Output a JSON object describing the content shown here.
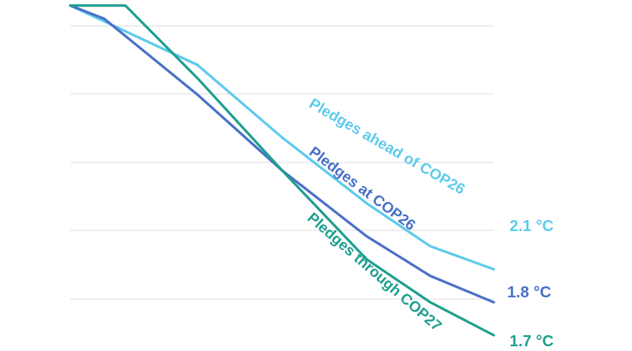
{
  "chart_data": {
    "type": "line",
    "title": "",
    "xlabel": "",
    "ylabel": "",
    "grid": true,
    "series": [
      {
        "name": "Pledges ahead of COP26",
        "end_label": "2.1 °C",
        "color": "#5ccbec",
        "points": [
          [
            0,
            0
          ],
          [
            0.1,
            0.06
          ],
          [
            0.3,
            0.18
          ],
          [
            0.5,
            0.4
          ],
          [
            0.7,
            0.6
          ],
          [
            0.85,
            0.73
          ],
          [
            1,
            0.8
          ]
        ]
      },
      {
        "name": "Pledges at COP26",
        "end_label": "1.8 °C",
        "color": "#4a70c7",
        "points": [
          [
            0,
            0
          ],
          [
            0.08,
            0.04
          ],
          [
            0.3,
            0.27
          ],
          [
            0.5,
            0.5
          ],
          [
            0.7,
            0.7
          ],
          [
            0.85,
            0.82
          ],
          [
            1,
            0.9
          ]
        ]
      },
      {
        "name": "Pledges through COP27",
        "end_label": "1.7 °C",
        "color": "#1e9f8f",
        "points": [
          [
            0,
            0
          ],
          [
            0.13,
            0
          ],
          [
            0.3,
            0.22
          ],
          [
            0.5,
            0.5
          ],
          [
            0.7,
            0.77
          ],
          [
            0.85,
            0.9
          ],
          [
            1,
            1
          ]
        ]
      }
    ]
  }
}
